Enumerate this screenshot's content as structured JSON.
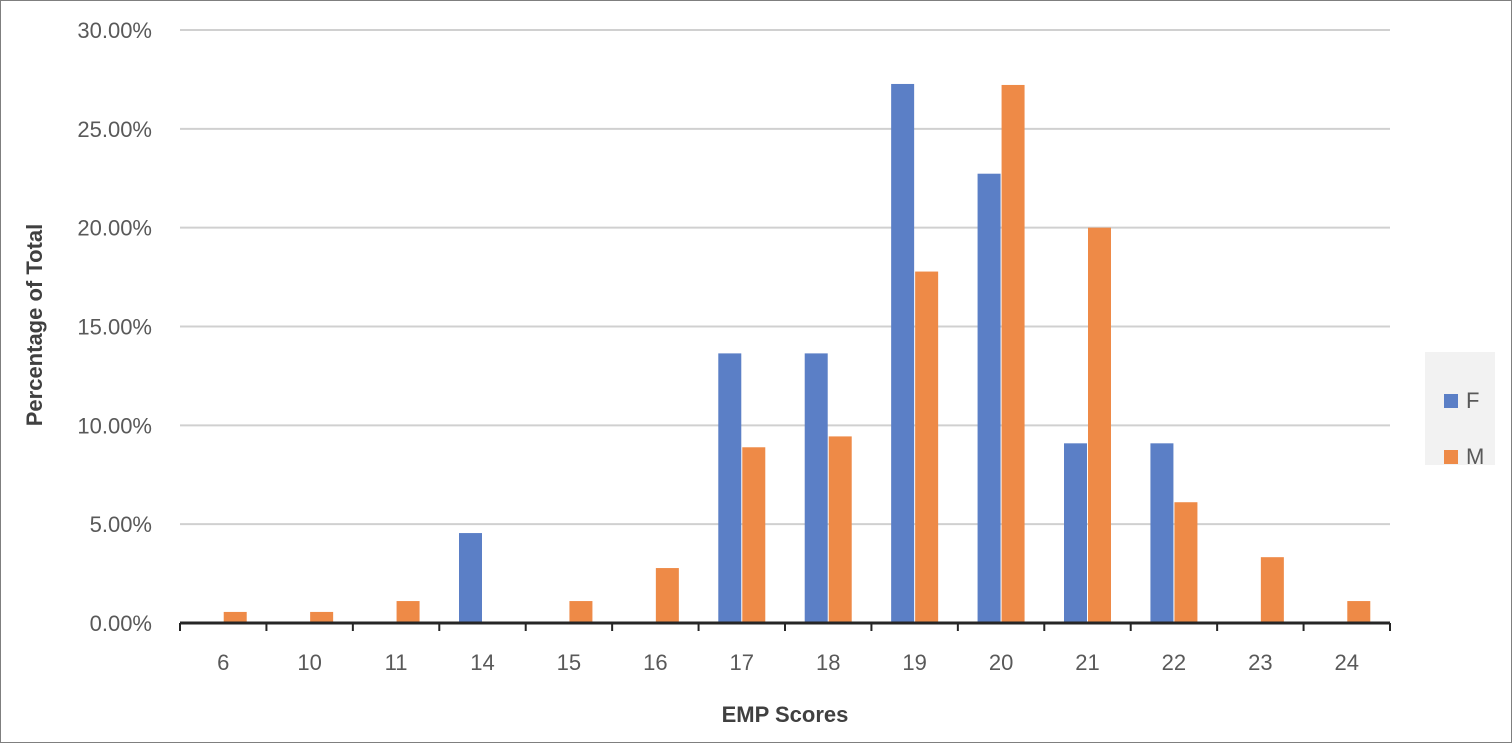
{
  "chart_data": {
    "type": "bar",
    "title": "",
    "xlabel": "EMP Scores",
    "ylabel": "Percentage of Total",
    "categories": [
      "6",
      "10",
      "11",
      "14",
      "15",
      "16",
      "17",
      "18",
      "19",
      "20",
      "21",
      "22",
      "23",
      "24"
    ],
    "series": [
      {
        "name": "F",
        "color": "#5b7fc6",
        "values": [
          0,
          0,
          0,
          4.55,
          0,
          0,
          13.64,
          13.64,
          27.27,
          22.73,
          9.09,
          9.09,
          0,
          0
        ]
      },
      {
        "name": "M",
        "color": "#ee8a47",
        "values": [
          0.56,
          0.56,
          1.11,
          0,
          1.11,
          2.78,
          8.89,
          9.44,
          17.78,
          27.22,
          20.0,
          6.11,
          3.33,
          1.11
        ]
      }
    ],
    "ylim": [
      0,
      30
    ],
    "yticks": [
      "0.00%",
      "5.00%",
      "10.00%",
      "15.00%",
      "20.00%",
      "25.00%",
      "30.00%"
    ],
    "grid": true,
    "legend_position": "right"
  }
}
